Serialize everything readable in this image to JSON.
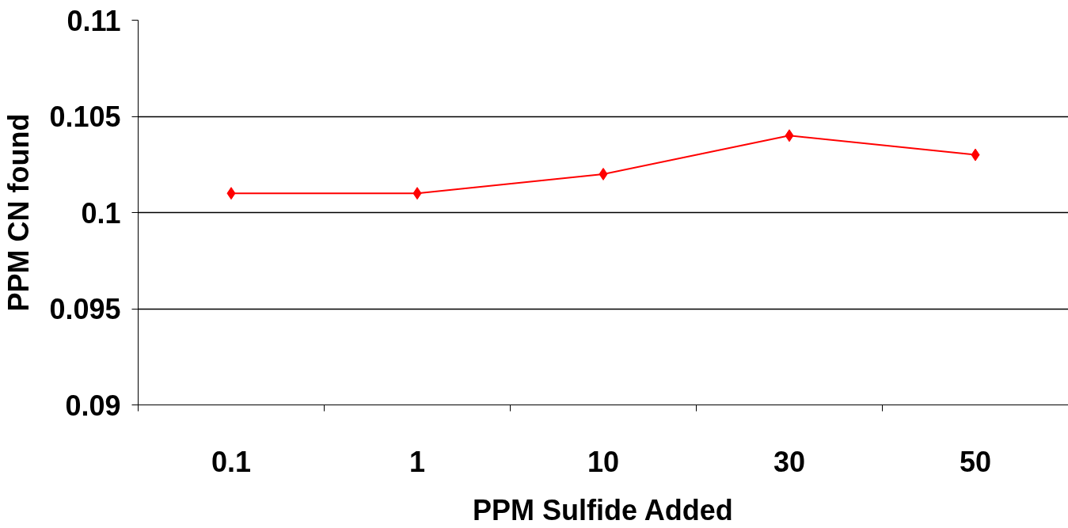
{
  "chart_data": {
    "type": "line",
    "xlabel": "PPM Sulfide Added",
    "ylabel": "PPM CN found",
    "categories": [
      "0.1",
      "1",
      "10",
      "30",
      "50"
    ],
    "series": [
      {
        "color": "#ff0000",
        "values": [
          0.101,
          0.101,
          0.102,
          0.104,
          0.103
        ]
      }
    ],
    "ylim": [
      0.09,
      0.11
    ],
    "yticks": [
      0.09,
      0.095,
      0.1,
      0.105,
      0.11
    ],
    "grid": "y",
    "marker": "diamond",
    "line_style": "solid"
  }
}
